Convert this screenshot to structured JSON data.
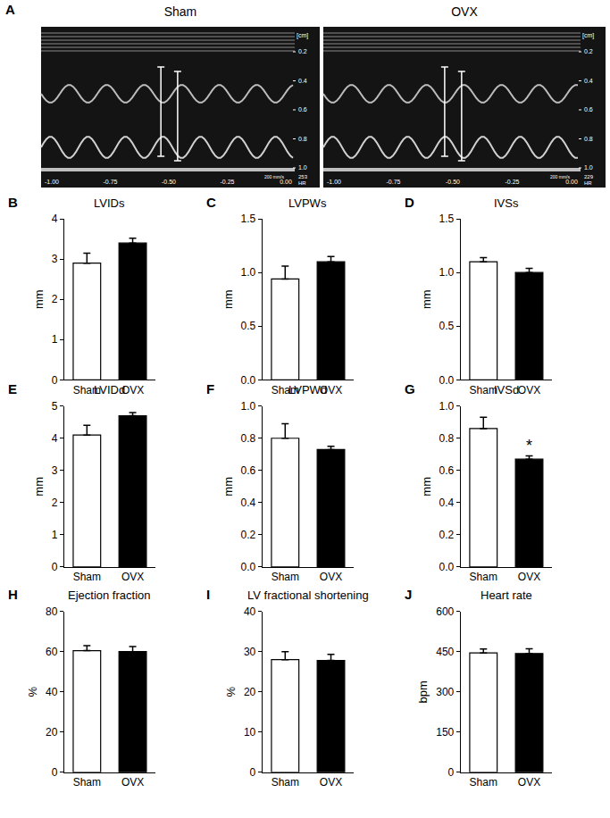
{
  "panel_a": {
    "label": "A",
    "depth_unit": "[cm]",
    "depth_ticks": [
      "0.2",
      "0.4",
      "0.6",
      "0.8",
      "1.0"
    ],
    "time_ticks": [
      "-1.00",
      "-0.75",
      "-0.50",
      "-0.25",
      "0.00"
    ],
    "speed": "200 mm/s",
    "images": [
      {
        "title": "Sham",
        "heart_rate": "253",
        "hr_label": "HR"
      },
      {
        "title": "OVX",
        "heart_rate": "229",
        "hr_label": "HR"
      }
    ]
  },
  "chart_data": [
    {
      "panel": "B",
      "type": "bar",
      "title": "LVIDs",
      "y_label": "mm",
      "categories": [
        "Sham",
        "OVX"
      ],
      "values": [
        2.9,
        3.4
      ],
      "errors": [
        0.25,
        0.12
      ],
      "colors": [
        "#ffffff",
        "#000000"
      ],
      "ylim": [
        0,
        4
      ],
      "yticks": [
        0,
        1,
        2,
        3,
        4
      ]
    },
    {
      "panel": "C",
      "type": "bar",
      "title": "LVPWs",
      "y_label": "mm",
      "categories": [
        "Sham",
        "OVX"
      ],
      "values": [
        0.94,
        1.1
      ],
      "errors": [
        0.12,
        0.05
      ],
      "colors": [
        "#ffffff",
        "#000000"
      ],
      "ylim": [
        0,
        1.5
      ],
      "yticks": [
        {
          "value": 0,
          "label": "0.0"
        },
        0.5,
        {
          "value": 1,
          "label": "1.0"
        },
        1.5
      ]
    },
    {
      "panel": "D",
      "type": "bar",
      "title": "IVSs",
      "y_label": "mm",
      "categories": [
        "Sham",
        "OVX"
      ],
      "values": [
        1.1,
        1.0
      ],
      "errors": [
        0.04,
        0.04
      ],
      "colors": [
        "#ffffff",
        "#000000"
      ],
      "ylim": [
        0,
        1.5
      ],
      "yticks": [
        {
          "value": 0,
          "label": "0.0"
        },
        0.5,
        {
          "value": 1,
          "label": "1.0"
        },
        1.5
      ]
    },
    {
      "panel": "E",
      "type": "bar",
      "title": "LVIDd",
      "y_label": "mm",
      "categories": [
        "Sham",
        "OVX"
      ],
      "values": [
        4.1,
        4.7
      ],
      "errors": [
        0.3,
        0.1
      ],
      "colors": [
        "#ffffff",
        "#000000"
      ],
      "ylim": [
        0,
        5
      ],
      "yticks": [
        0,
        1,
        2,
        3,
        4,
        5
      ]
    },
    {
      "panel": "F",
      "type": "bar",
      "title": "LVPWd",
      "y_label": "mm",
      "categories": [
        "Sham",
        "OVX"
      ],
      "values": [
        0.8,
        0.73
      ],
      "errors": [
        0.09,
        0.02
      ],
      "colors": [
        "#ffffff",
        "#000000"
      ],
      "ylim": [
        0,
        1
      ],
      "yticks": [
        {
          "value": 0,
          "label": "0.0"
        },
        {
          "value": 0.2,
          "label": "0.2"
        },
        {
          "value": 0.4,
          "label": "0.4"
        },
        {
          "value": 0.6,
          "label": "0.6"
        },
        {
          "value": 0.8,
          "label": "0.8"
        },
        {
          "value": 1,
          "label": "1.0"
        }
      ]
    },
    {
      "panel": "G",
      "type": "bar",
      "title": "IVSd",
      "y_label": "mm",
      "categories": [
        "Sham",
        "OVX"
      ],
      "values": [
        0.86,
        0.67
      ],
      "errors": [
        0.07,
        0.02
      ],
      "colors": [
        "#ffffff",
        "#000000"
      ],
      "ylim": [
        0,
        1
      ],
      "yticks": [
        {
          "value": 0,
          "label": "0.0"
        },
        {
          "value": 0.2,
          "label": "0.2"
        },
        {
          "value": 0.4,
          "label": "0.4"
        },
        {
          "value": 0.6,
          "label": "0.6"
        },
        {
          "value": 0.8,
          "label": "0.8"
        },
        {
          "value": 1,
          "label": "1.0"
        }
      ],
      "annotations": [
        {
          "category": "OVX",
          "text": "*"
        }
      ]
    },
    {
      "panel": "H",
      "type": "bar",
      "title": "Ejection fraction",
      "y_label": "%",
      "categories": [
        "Sham",
        "OVX"
      ],
      "values": [
        60.5,
        60
      ],
      "errors": [
        2.5,
        2.5
      ],
      "colors": [
        "#ffffff",
        "#000000"
      ],
      "ylim": [
        0,
        80
      ],
      "yticks": [
        0,
        20,
        40,
        60,
        80
      ]
    },
    {
      "panel": "I",
      "type": "bar",
      "title": "LV fractional shortening",
      "y_label": "%",
      "categories": [
        "Sham",
        "OVX"
      ],
      "values": [
        28,
        27.8
      ],
      "errors": [
        2,
        1.5
      ],
      "colors": [
        "#ffffff",
        "#000000"
      ],
      "ylim": [
        0,
        40
      ],
      "yticks": [
        0,
        10,
        20,
        30,
        40
      ]
    },
    {
      "panel": "J",
      "type": "bar",
      "title": "Heart rate",
      "y_label": "bpm",
      "categories": [
        "Sham",
        "OVX"
      ],
      "values": [
        445,
        443
      ],
      "errors": [
        15,
        18
      ],
      "colors": [
        "#ffffff",
        "#000000"
      ],
      "ylim": [
        0,
        600
      ],
      "yticks": [
        0,
        150,
        300,
        450,
        600
      ]
    }
  ]
}
